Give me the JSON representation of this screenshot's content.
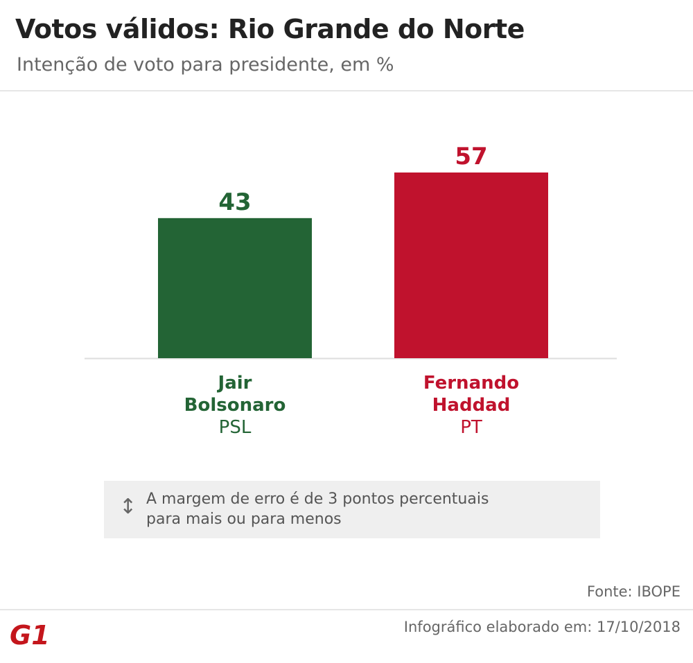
{
  "header": {
    "title": "Votos válidos: Rio Grande do Norte",
    "subtitle": "Intenção de voto para presidente, em %"
  },
  "chart_data": {
    "type": "bar",
    "categories": [
      "Jair Bolsonaro",
      "Fernando Haddad"
    ],
    "values": [
      43,
      57
    ],
    "category_lines": [
      [
        "Jair",
        "Bolsonaro"
      ],
      [
        "Fernando",
        "Haddad"
      ]
    ],
    "parties": [
      "PSL",
      "PT"
    ],
    "colors": [
      "#236435",
      "#c0122d"
    ],
    "ylim": [
      0,
      57
    ],
    "grid": false
  },
  "note": {
    "icon": "up-down-arrow-icon",
    "line1": "A margem de erro é de 3 pontos percentuais",
    "line2": "para mais ou para menos"
  },
  "footer": {
    "source": "Fonte: IBOPE",
    "credit": "Infográfico elaborado em: 17/10/2018",
    "logo_text": "G1",
    "logo_color": "#c4161c"
  }
}
